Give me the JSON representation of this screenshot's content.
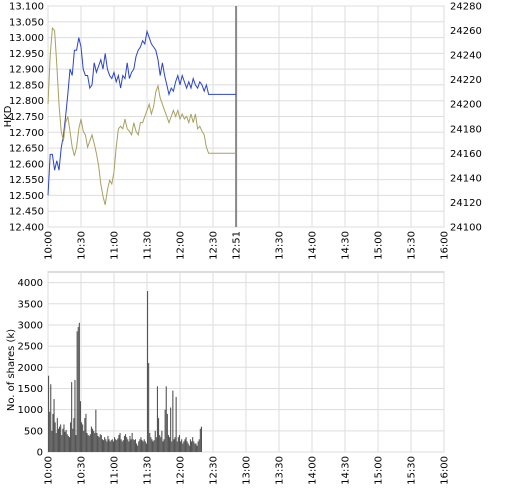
{
  "chart_data": [
    {
      "type": "line",
      "ylabel": "HKD",
      "y2label": "",
      "x_ticks": [
        "10:00",
        "10:30",
        "11:00",
        "11:30",
        "12:00",
        "12:30",
        "12:51",
        "13:30",
        "14:00",
        "14:30",
        "15:00",
        "15:30",
        "16:00"
      ],
      "ylim": [
        12.4,
        13.1
      ],
      "y_ticks": [
        "12.400",
        "12.450",
        "12.500",
        "12.550",
        "12.600",
        "12.650",
        "12.700",
        "12.750",
        "12.800",
        "12.850",
        "12.900",
        "12.950",
        "13.000",
        "13.050",
        "13.100"
      ],
      "y2lim": [
        24100,
        24280
      ],
      "y2_ticks": [
        "24100",
        "24120",
        "24140",
        "24160",
        "24180",
        "24200",
        "24220",
        "24240",
        "24260",
        "24280"
      ],
      "current_time_marker": "12:51",
      "grid": true,
      "series": [
        {
          "color": "#2a44cc",
          "axis": "left",
          "points": [
            [
              "10:00",
              12.5
            ],
            [
              "10:02",
              12.63
            ],
            [
              "10:04",
              12.63
            ],
            [
              "10:06",
              12.58
            ],
            [
              "10:08",
              12.61
            ],
            [
              "10:10",
              12.58
            ],
            [
              "10:12",
              12.65
            ],
            [
              "10:14",
              12.69
            ],
            [
              "10:16",
              12.75
            ],
            [
              "10:18",
              12.82
            ],
            [
              "10:20",
              12.9
            ],
            [
              "10:22",
              12.88
            ],
            [
              "10:24",
              12.96
            ],
            [
              "10:26",
              12.96
            ],
            [
              "10:28",
              13.0
            ],
            [
              "10:30",
              12.97
            ],
            [
              "10:32",
              12.9
            ],
            [
              "10:34",
              12.88
            ],
            [
              "10:36",
              12.88
            ],
            [
              "10:38",
              12.84
            ],
            [
              "10:40",
              12.85
            ],
            [
              "10:42",
              12.92
            ],
            [
              "10:44",
              12.89
            ],
            [
              "10:46",
              12.91
            ],
            [
              "10:48",
              12.93
            ],
            [
              "10:50",
              12.9
            ],
            [
              "10:52",
              12.95
            ],
            [
              "10:54",
              12.9
            ],
            [
              "10:56",
              12.88
            ],
            [
              "10:58",
              12.87
            ],
            [
              "11:00",
              12.89
            ],
            [
              "11:02",
              12.86
            ],
            [
              "11:04",
              12.88
            ],
            [
              "11:06",
              12.84
            ],
            [
              "11:08",
              12.88
            ],
            [
              "11:10",
              12.87
            ],
            [
              "11:12",
              12.92
            ],
            [
              "11:14",
              12.87
            ],
            [
              "11:16",
              12.89
            ],
            [
              "11:18",
              12.9
            ],
            [
              "11:20",
              12.94
            ],
            [
              "11:22",
              12.96
            ],
            [
              "11:24",
              12.97
            ],
            [
              "11:26",
              12.99
            ],
            [
              "11:28",
              12.98
            ],
            [
              "11:30",
              13.02
            ],
            [
              "11:32",
              13.0
            ],
            [
              "11:34",
              12.98
            ],
            [
              "11:36",
              12.97
            ],
            [
              "11:38",
              12.96
            ],
            [
              "11:40",
              12.93
            ],
            [
              "11:42",
              12.88
            ],
            [
              "11:44",
              12.92
            ],
            [
              "11:46",
              12.88
            ],
            [
              "11:48",
              12.85
            ],
            [
              "11:50",
              12.82
            ],
            [
              "11:52",
              12.84
            ],
            [
              "11:54",
              12.83
            ],
            [
              "11:56",
              12.86
            ],
            [
              "11:58",
              12.88
            ],
            [
              "12:00",
              12.85
            ],
            [
              "12:02",
              12.88
            ],
            [
              "12:04",
              12.86
            ],
            [
              "12:06",
              12.84
            ],
            [
              "12:08",
              12.86
            ],
            [
              "12:10",
              12.84
            ],
            [
              "12:12",
              12.87
            ],
            [
              "12:14",
              12.85
            ],
            [
              "12:16",
              12.84
            ],
            [
              "12:18",
              12.86
            ],
            [
              "12:20",
              12.85
            ],
            [
              "12:22",
              12.83
            ],
            [
              "12:24",
              12.85
            ],
            [
              "12:26",
              12.82
            ],
            [
              "12:28",
              12.82
            ],
            [
              "12:30",
              12.82
            ],
            [
              "12:40",
              12.82
            ],
            [
              "12:51",
              12.82
            ]
          ]
        },
        {
          "color": "#a8a060",
          "axis": "right",
          "points": [
            [
              "10:00",
              24200
            ],
            [
              "10:02",
              24240
            ],
            [
              "10:04",
              24262
            ],
            [
              "10:06",
              24260
            ],
            [
              "10:08",
              24232
            ],
            [
              "10:10",
              24200
            ],
            [
              "10:12",
              24178
            ],
            [
              "10:14",
              24170
            ],
            [
              "10:16",
              24185
            ],
            [
              "10:18",
              24190
            ],
            [
              "10:20",
              24178
            ],
            [
              "10:22",
              24165
            ],
            [
              "10:24",
              24158
            ],
            [
              "10:26",
              24165
            ],
            [
              "10:28",
              24180
            ],
            [
              "10:30",
              24188
            ],
            [
              "10:32",
              24178
            ],
            [
              "10:34",
              24175
            ],
            [
              "10:36",
              24165
            ],
            [
              "10:38",
              24170
            ],
            [
              "10:40",
              24175
            ],
            [
              "10:42",
              24168
            ],
            [
              "10:44",
              24160
            ],
            [
              "10:46",
              24150
            ],
            [
              "10:48",
              24135
            ],
            [
              "10:50",
              24125
            ],
            [
              "10:52",
              24118
            ],
            [
              "10:54",
              24130
            ],
            [
              "10:56",
              24138
            ],
            [
              "10:58",
              24135
            ],
            [
              "11:00",
              24145
            ],
            [
              "11:02",
              24165
            ],
            [
              "11:04",
              24180
            ],
            [
              "11:06",
              24182
            ],
            [
              "11:08",
              24180
            ],
            [
              "11:10",
              24188
            ],
            [
              "11:12",
              24180
            ],
            [
              "11:14",
              24178
            ],
            [
              "11:16",
              24175
            ],
            [
              "11:18",
              24185
            ],
            [
              "11:20",
              24178
            ],
            [
              "11:22",
              24175
            ],
            [
              "11:24",
              24185
            ],
            [
              "11:26",
              24185
            ],
            [
              "11:28",
              24190
            ],
            [
              "11:30",
              24195
            ],
            [
              "11:32",
              24200
            ],
            [
              "11:34",
              24192
            ],
            [
              "11:36",
              24198
            ],
            [
              "11:38",
              24210
            ],
            [
              "11:40",
              24215
            ],
            [
              "11:42",
              24205
            ],
            [
              "11:44",
              24200
            ],
            [
              "11:46",
              24195
            ],
            [
              "11:48",
              24190
            ],
            [
              "11:50",
              24185
            ],
            [
              "11:52",
              24190
            ],
            [
              "11:54",
              24195
            ],
            [
              "11:56",
              24190
            ],
            [
              "11:58",
              24195
            ],
            [
              "12:00",
              24188
            ],
            [
              "12:02",
              24192
            ],
            [
              "12:04",
              24188
            ],
            [
              "12:06",
              24190
            ],
            [
              "12:08",
              24185
            ],
            [
              "12:10",
              24192
            ],
            [
              "12:12",
              24185
            ],
            [
              "12:14",
              24192
            ],
            [
              "12:16",
              24180
            ],
            [
              "12:18",
              24182
            ],
            [
              "12:20",
              24178
            ],
            [
              "12:22",
              24175
            ],
            [
              "12:24",
              24165
            ],
            [
              "12:26",
              24160
            ],
            [
              "12:28",
              24160
            ],
            [
              "12:30",
              24160
            ],
            [
              "12:40",
              24160
            ],
            [
              "12:51",
              24160
            ]
          ]
        }
      ]
    },
    {
      "type": "bar",
      "ylabel": "No. of shares (k)",
      "x_ticks": [
        "10:00",
        "10:30",
        "11:00",
        "11:30",
        "12:00",
        "12:30",
        "13:00",
        "13:30",
        "14:00",
        "14:30",
        "15:00",
        "15:30",
        "16:00"
      ],
      "ylim": [
        0,
        4250
      ],
      "y_ticks": [
        "0",
        "500",
        "1000",
        "1500",
        "2000",
        "2500",
        "3000",
        "3500",
        "4000"
      ],
      "grid": true,
      "bar_color": "#555555",
      "minutes_from": "10:00",
      "values": [
        1800,
        950,
        1600,
        500,
        900,
        1250,
        700,
        450,
        800,
        550,
        600,
        650,
        400,
        550,
        650,
        480,
        520,
        420,
        380,
        350,
        700,
        1650,
        550,
        800,
        1700,
        400,
        2850,
        2950,
        3050,
        1200,
        700,
        650,
        500,
        800,
        900,
        450,
        400,
        380,
        420,
        600,
        550,
        500,
        450,
        1000,
        450,
        380,
        350,
        420,
        400,
        300,
        280,
        350,
        300,
        250,
        380,
        300,
        250,
        280,
        300,
        250,
        350,
        300,
        280,
        320,
        400,
        450,
        300,
        250,
        280,
        380,
        420,
        350,
        300,
        250,
        380,
        300,
        450,
        300,
        280,
        300,
        200,
        150,
        250,
        300,
        350,
        280,
        250,
        300,
        250,
        200,
        3800,
        2100,
        450,
        350,
        300,
        250,
        280,
        500,
        350,
        1550,
        800,
        400,
        350,
        500,
        250,
        300,
        1000,
        1550,
        900,
        400,
        350,
        1050,
        250,
        1450,
        300,
        350,
        1300,
        250,
        350,
        400,
        250,
        300,
        200,
        250,
        300,
        350,
        250,
        200,
        150,
        300,
        250,
        350,
        250,
        200,
        200,
        150,
        250,
        300,
        550,
        600
      ]
    }
  ]
}
